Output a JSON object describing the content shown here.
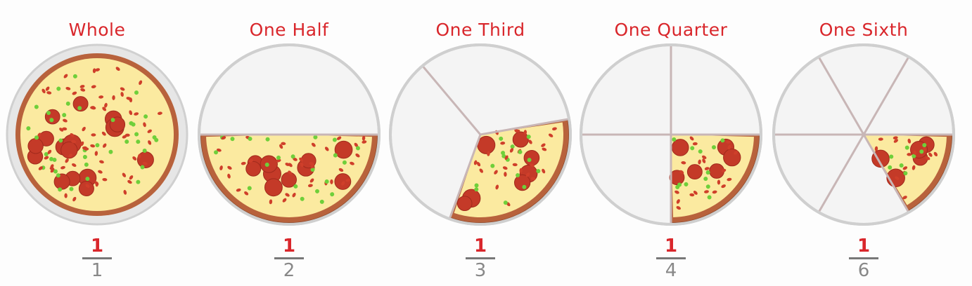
{
  "panels": [
    {
      "title": "Whole",
      "numerator": "1",
      "denominator": "1",
      "slices": 1
    },
    {
      "title": "One Half",
      "numerator": "1",
      "denominator": "2",
      "slices": 2
    },
    {
      "title": "One Third",
      "numerator": "1",
      "denominator": "3",
      "slices": 3
    },
    {
      "title": "One Quarter",
      "numerator": "1",
      "denominator": "4",
      "slices": 4
    },
    {
      "title": "One Sixth",
      "numerator": "1",
      "denominator": "6",
      "slices": 6
    }
  ],
  "colors": {
    "title": "#d9262b",
    "crust": "#b8623c",
    "cheese": "#fbeaa0",
    "pepperoni": "#c43a28",
    "pepper": "#6fcf3a",
    "empty_plate": "#f4f4f4",
    "plate_outline": "#cfcfcf"
  }
}
